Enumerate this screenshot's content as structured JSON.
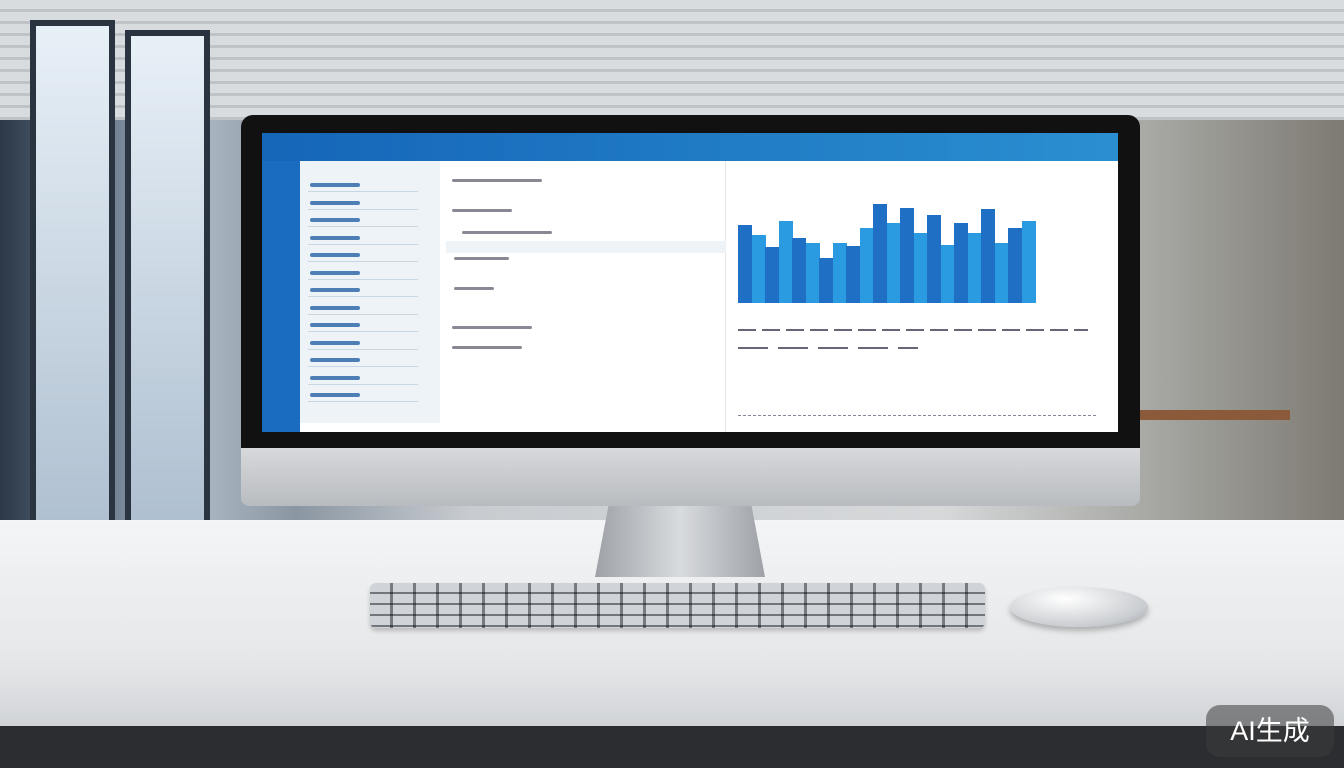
{
  "watermark": {
    "text": "AI生成"
  },
  "screen": {
    "accent_color": "#1a6cc0",
    "bar_colors": [
      "#1f6fc4",
      "#2a9be0"
    ],
    "chart_bar_levels": [
      0.78,
      0.68,
      0.56,
      0.82,
      0.65,
      0.6,
      0.45,
      0.6,
      0.57,
      0.75,
      0.99,
      0.8,
      0.95,
      0.7,
      0.88,
      0.58,
      0.8,
      0.7,
      0.94,
      0.6,
      0.75,
      0.82
    ]
  }
}
